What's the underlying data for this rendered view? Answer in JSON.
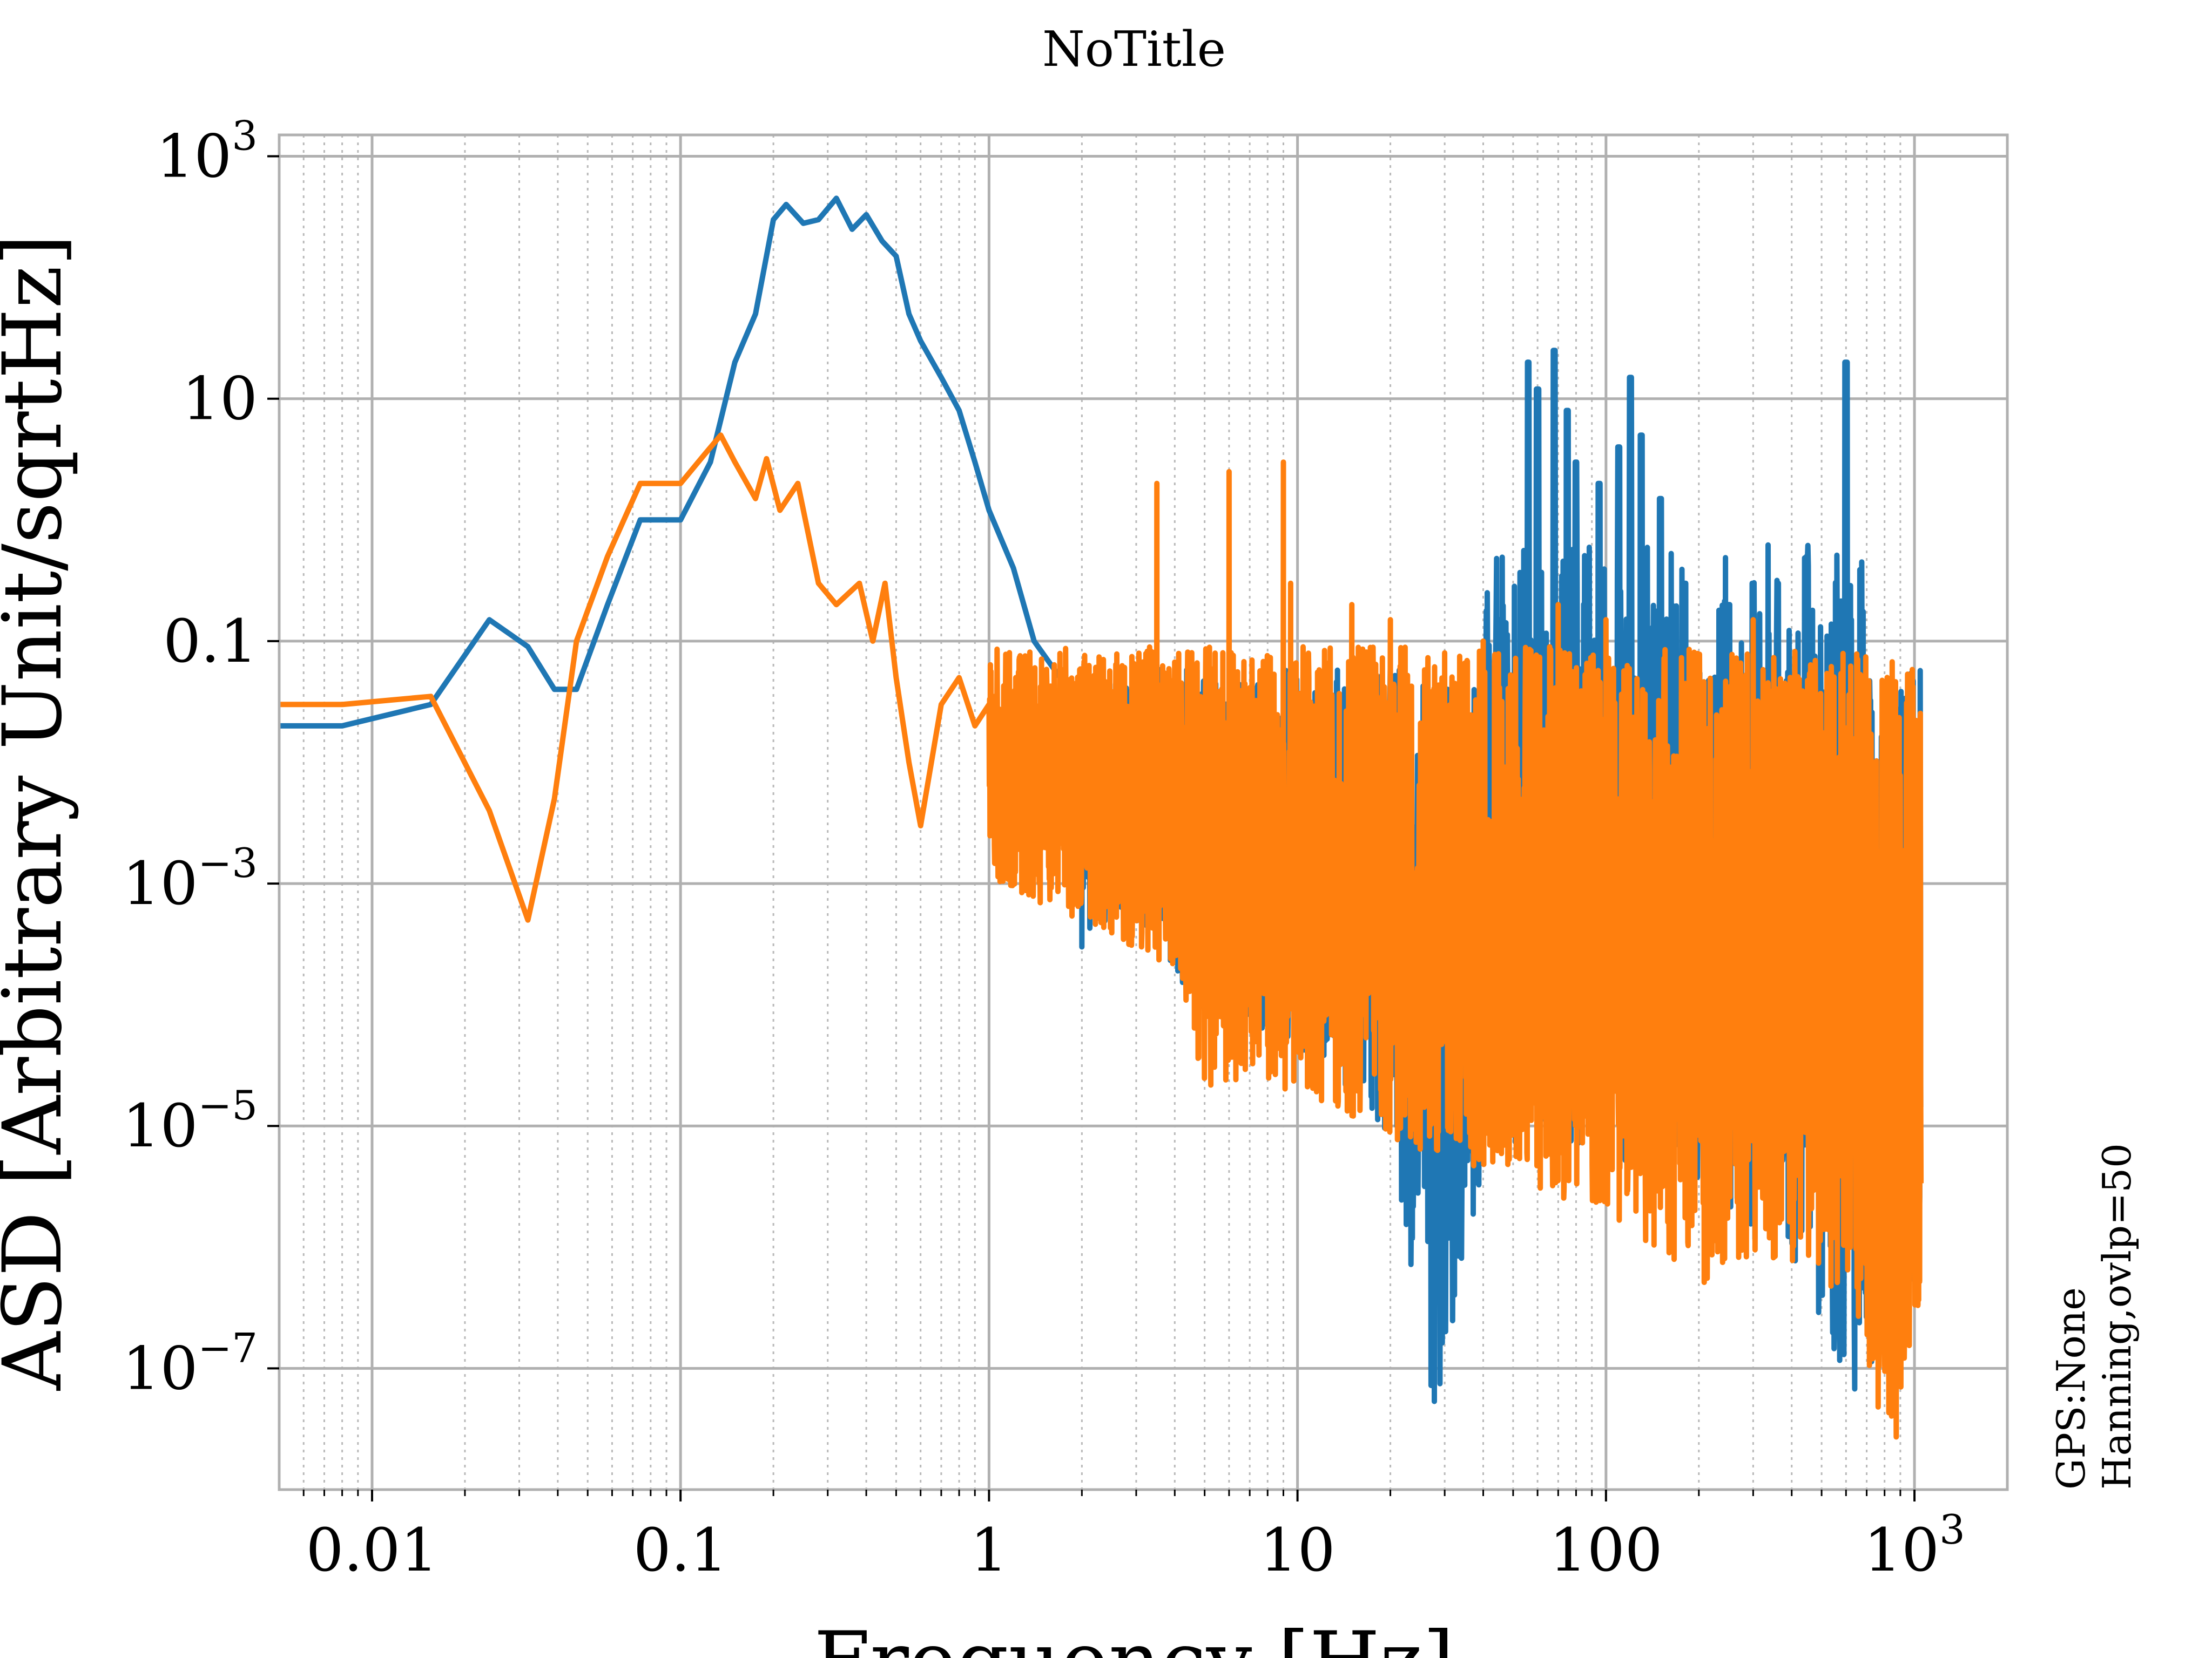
{
  "chart_data": {
    "type": "line",
    "title": "NoTitle",
    "xlabel": "Frequency [Hz]",
    "ylabel": "ASD [Arbitrary Unit/sqrtHz]",
    "xscale": "log",
    "yscale": "log",
    "xlim": [
      0.005,
      2000
    ],
    "ylim": [
      1e-08,
      1500
    ],
    "grid": true,
    "x_ticks": [
      {
        "value": 0.01,
        "label": "0.01"
      },
      {
        "value": 0.1,
        "label": "0.1"
      },
      {
        "value": 1,
        "label": "1"
      },
      {
        "value": 10,
        "label": "10"
      },
      {
        "value": 100,
        "label": "100"
      },
      {
        "value": 1000,
        "label": "10",
        "exp": "3"
      }
    ],
    "y_ticks": [
      {
        "value": 1e-07,
        "label": "10",
        "exp": "−7"
      },
      {
        "value": 1e-05,
        "label": "10",
        "exp": "−5"
      },
      {
        "value": 0.001,
        "label": "10",
        "exp": "−3"
      },
      {
        "value": 0.1,
        "label": "0.1"
      },
      {
        "value": 10,
        "label": "10"
      },
      {
        "value": 1000,
        "label": "10",
        "exp": "3"
      }
    ],
    "side_annotation": [
      "GPS:None",
      "Hanning,ovlp=50"
    ],
    "series": [
      {
        "color": "#1f77b4",
        "x": [
          0.005,
          0.008,
          0.0155,
          0.024,
          0.032,
          0.039,
          0.046,
          0.058,
          0.074,
          0.1,
          0.125,
          0.15,
          0.175,
          0.2,
          0.22,
          0.25,
          0.28,
          0.32,
          0.36,
          0.4,
          0.45,
          0.5,
          0.55,
          0.6,
          0.7,
          0.8,
          0.9,
          1.0,
          1.2,
          1.4,
          1.7,
          2.0
        ],
        "y": [
          0.02,
          0.02,
          0.03,
          0.15,
          0.09,
          0.04,
          0.04,
          0.2,
          1.0,
          1.0,
          3.0,
          20,
          50,
          300,
          400,
          280,
          300,
          450,
          250,
          330,
          200,
          150,
          50,
          30,
          15,
          8,
          3,
          1.2,
          0.4,
          0.1,
          0.05,
          0.02
        ]
      },
      {
        "color": "#ff7f0e",
        "x": [
          0.005,
          0.008,
          0.0155,
          0.024,
          0.032,
          0.039,
          0.046,
          0.058,
          0.074,
          0.1,
          0.12,
          0.135,
          0.15,
          0.175,
          0.19,
          0.21,
          0.24,
          0.28,
          0.32,
          0.38,
          0.42,
          0.46,
          0.5,
          0.55,
          0.6,
          0.7,
          0.8,
          0.9,
          1.0
        ],
        "y": [
          0.03,
          0.03,
          0.035,
          0.004,
          0.0005,
          0.005,
          0.1,
          0.5,
          2.0,
          2.0,
          3.5,
          5.0,
          3.0,
          1.5,
          3.2,
          1.2,
          2.0,
          0.3,
          0.2,
          0.3,
          0.1,
          0.3,
          0.05,
          0.01,
          0.003,
          0.03,
          0.05,
          0.02,
          0.03
        ]
      }
    ],
    "noise_band": {
      "x_range": [
        1.0,
        1050
      ],
      "blue_floor": [
        [
          1.4,
          0.002
        ],
        [
          2,
          0.0003
        ],
        [
          3,
          0.0005
        ],
        [
          5,
          8e-05
        ],
        [
          10,
          4e-05
        ],
        [
          20,
          8e-06
        ],
        [
          28,
          4e-08
        ],
        [
          40,
          5e-06
        ],
        [
          70,
          8e-06
        ],
        [
          100,
          6e-06
        ],
        [
          200,
          3e-06
        ],
        [
          400,
          6e-07
        ],
        [
          600,
          5e-08
        ],
        [
          800,
          1.5e-07
        ],
        [
          1000,
          5e-07
        ]
      ],
      "blue_peaks": [
        [
          28.5,
          0.04
        ],
        [
          45,
          0.15
        ],
        [
          56,
          20
        ],
        [
          60,
          12
        ],
        [
          68,
          25
        ],
        [
          75,
          8
        ],
        [
          80,
          3
        ],
        [
          95,
          2
        ],
        [
          110,
          4
        ],
        [
          120,
          15
        ],
        [
          130,
          5
        ],
        [
          150,
          1.5
        ],
        [
          180,
          0.3
        ],
        [
          250,
          0.2
        ],
        [
          300,
          0.3
        ],
        [
          360,
          0.3
        ],
        [
          450,
          0.5
        ],
        [
          600,
          20
        ],
        [
          620,
          0.15
        ]
      ],
      "orange_top": 0.09,
      "orange_floor": [
        [
          1.0,
          0.001
        ],
        [
          2,
          0.0005
        ],
        [
          4,
          0.0002
        ],
        [
          5,
          2e-05
        ],
        [
          10,
          2e-05
        ],
        [
          20,
          8e-06
        ],
        [
          40,
          4e-06
        ],
        [
          100,
          2e-06
        ],
        [
          200,
          5e-07
        ],
        [
          400,
          6e-07
        ],
        [
          700,
          1e-07
        ],
        [
          850,
          1.5e-08
        ],
        [
          1000,
          3e-07
        ]
      ],
      "orange_peaks": [
        [
          3.5,
          2
        ],
        [
          6,
          2.5
        ],
        [
          9,
          3
        ],
        [
          9.5,
          0.3
        ],
        [
          15,
          0.2
        ],
        [
          20,
          0.15
        ],
        [
          30,
          0.08
        ],
        [
          40,
          0.1
        ],
        [
          70,
          0.2
        ],
        [
          100,
          0.15
        ],
        [
          300,
          0.15
        ]
      ]
    }
  }
}
